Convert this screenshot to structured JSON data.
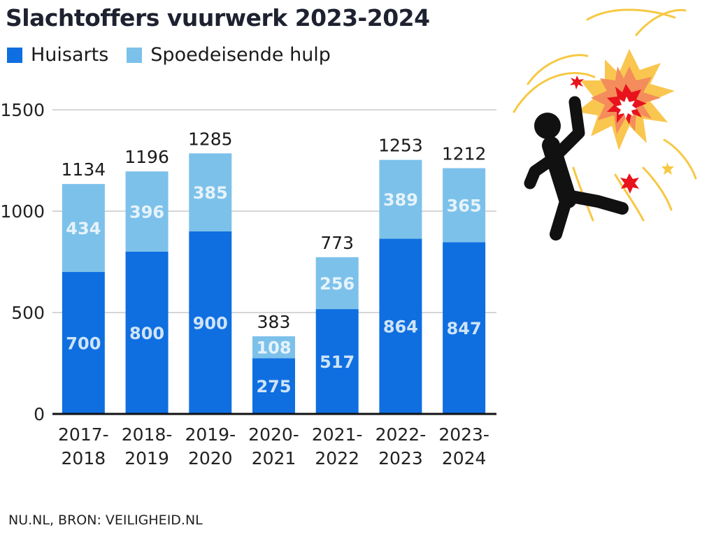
{
  "colors": {
    "huisarts": "#0f6fe0",
    "spoedeisende_hulp": "#7cc1ea",
    "segment_label": "#cfe4f7",
    "grid": "#d6d6d6",
    "axis": "#111111"
  },
  "illustration": {
    "icon": "person-hit-by-firework-icon"
  },
  "source": "NU.NL, BRON: VEILIGHEID.NL",
  "chart_data": {
    "type": "bar",
    "stacked": true,
    "title": "Slachtoffers vuurwerk 2023-2024",
    "xlabel": "",
    "ylabel": "",
    "ylim": [
      0,
      1500
    ],
    "yticks": [
      0,
      500,
      1000,
      1500
    ],
    "grid": true,
    "legend_position": "top-left",
    "categories": [
      [
        "2017-",
        "2018"
      ],
      [
        "2018-",
        "2019"
      ],
      [
        "2019-",
        "2020"
      ],
      [
        "2020-",
        "2021"
      ],
      [
        "2021-",
        "2022"
      ],
      [
        "2022-",
        "2023"
      ],
      [
        "2023-",
        "2024"
      ]
    ],
    "series": [
      {
        "name": "Huisarts",
        "values": [
          700,
          800,
          900,
          275,
          517,
          864,
          847
        ]
      },
      {
        "name": "Spoedeisende hulp",
        "values": [
          434,
          396,
          385,
          108,
          256,
          389,
          365
        ]
      }
    ],
    "totals": [
      1134,
      1196,
      1285,
      383,
      773,
      1253,
      1212
    ]
  }
}
